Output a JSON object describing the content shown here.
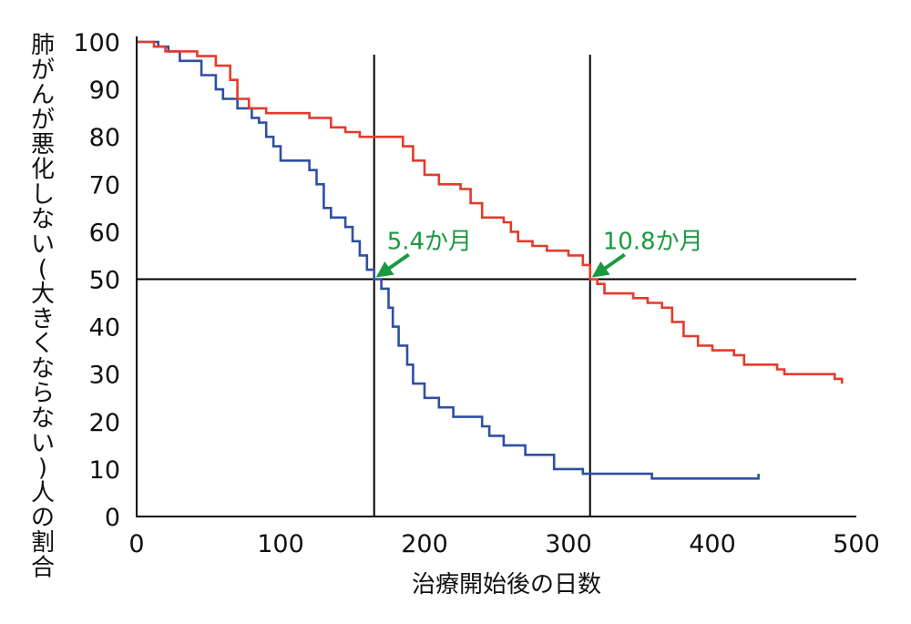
{
  "chart_data": {
    "type": "line",
    "xlabel": "治療開始後の日数",
    "ylabel": "肺がんが悪化しない(大きくならない)人の割合",
    "xlim": [
      0,
      500
    ],
    "ylim": [
      0,
      100
    ],
    "x_ticks": [
      "0",
      "100",
      "200",
      "300",
      "400",
      "500"
    ],
    "y_ticks": [
      "0",
      "10",
      "20",
      "30",
      "40",
      "50",
      "60",
      "70",
      "80",
      "90",
      "100"
    ],
    "reference_lines": {
      "y": 50,
      "x": [
        165,
        315
      ]
    },
    "annotations": [
      {
        "text": "5.4か月",
        "x": 165,
        "y": 50,
        "color": "#1a9a3e"
      },
      {
        "text": "10.8か月",
        "x": 315,
        "y": 50,
        "color": "#1a9a3e"
      }
    ],
    "series": [
      {
        "color": "#2e4fa3",
        "points": [
          [
            0,
            100
          ],
          [
            10,
            100
          ],
          [
            15,
            99
          ],
          [
            22,
            98
          ],
          [
            30,
            96
          ],
          [
            45,
            93
          ],
          [
            55,
            90
          ],
          [
            60,
            88
          ],
          [
            70,
            86
          ],
          [
            80,
            84
          ],
          [
            85,
            83
          ],
          [
            90,
            80
          ],
          [
            95,
            78
          ],
          [
            100,
            75
          ],
          [
            115,
            75
          ],
          [
            120,
            73
          ],
          [
            125,
            70
          ],
          [
            130,
            65
          ],
          [
            135,
            63
          ],
          [
            145,
            61
          ],
          [
            150,
            58
          ],
          [
            155,
            55
          ],
          [
            160,
            52
          ],
          [
            165,
            50
          ],
          [
            170,
            48
          ],
          [
            175,
            44
          ],
          [
            178,
            40
          ],
          [
            182,
            36
          ],
          [
            188,
            32
          ],
          [
            192,
            28
          ],
          [
            200,
            25
          ],
          [
            210,
            23
          ],
          [
            220,
            21
          ],
          [
            240,
            19
          ],
          [
            245,
            17
          ],
          [
            255,
            15
          ],
          [
            270,
            13
          ],
          [
            290,
            10
          ],
          [
            310,
            9
          ],
          [
            355,
            9
          ],
          [
            358,
            8
          ],
          [
            432,
            8
          ],
          [
            432,
            9
          ]
        ]
      },
      {
        "color": "#e33b2c",
        "points": [
          [
            0,
            100
          ],
          [
            12,
            99
          ],
          [
            20,
            98
          ],
          [
            38,
            98
          ],
          [
            42,
            97
          ],
          [
            55,
            95
          ],
          [
            65,
            92
          ],
          [
            70,
            88
          ],
          [
            78,
            86
          ],
          [
            90,
            85
          ],
          [
            110,
            85
          ],
          [
            120,
            84
          ],
          [
            135,
            82
          ],
          [
            145,
            81
          ],
          [
            155,
            80
          ],
          [
            180,
            80
          ],
          [
            185,
            78
          ],
          [
            192,
            75
          ],
          [
            200,
            72
          ],
          [
            210,
            70
          ],
          [
            225,
            69
          ],
          [
            232,
            66
          ],
          [
            240,
            63
          ],
          [
            255,
            62
          ],
          [
            260,
            60
          ],
          [
            265,
            58
          ],
          [
            275,
            57
          ],
          [
            285,
            56
          ],
          [
            300,
            55
          ],
          [
            310,
            53
          ],
          [
            315,
            50
          ],
          [
            320,
            49
          ],
          [
            325,
            47
          ],
          [
            345,
            46
          ],
          [
            355,
            45
          ],
          [
            365,
            44
          ],
          [
            372,
            41
          ],
          [
            380,
            38
          ],
          [
            390,
            36
          ],
          [
            400,
            35
          ],
          [
            415,
            34
          ],
          [
            422,
            32
          ],
          [
            445,
            31
          ],
          [
            450,
            30
          ],
          [
            480,
            30
          ],
          [
            485,
            29
          ],
          [
            490,
            28
          ]
        ]
      }
    ]
  }
}
